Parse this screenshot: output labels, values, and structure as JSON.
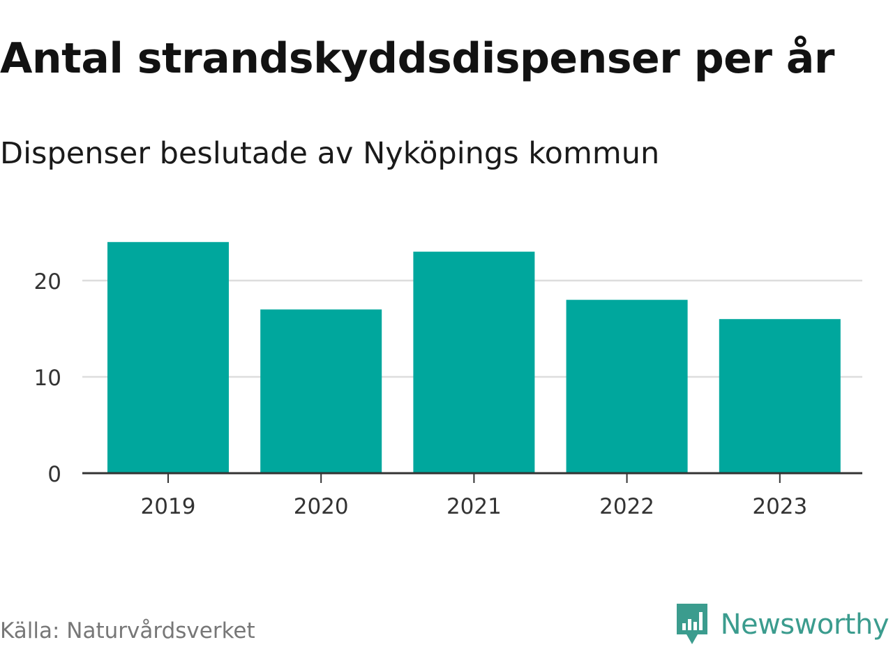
{
  "title": "Antal strandskyddsdispenser per år",
  "subtitle": "Dispenser beslutade av Nyköpings kommun",
  "source": "Källa: Naturvårdsverket",
  "brand": "Newsworthy",
  "colors": {
    "bar": "#00a79d",
    "grid": "#dddddd",
    "axis": "#333333",
    "brand": "#3b9c8e"
  },
  "chart_data": {
    "type": "bar",
    "categories": [
      "2019",
      "2020",
      "2021",
      "2022",
      "2023"
    ],
    "values": [
      24,
      17,
      23,
      18,
      16
    ],
    "ylim": [
      0,
      25
    ],
    "yticks": [
      0,
      10,
      20
    ],
    "xlabel": "",
    "ylabel": "",
    "grid": true
  }
}
